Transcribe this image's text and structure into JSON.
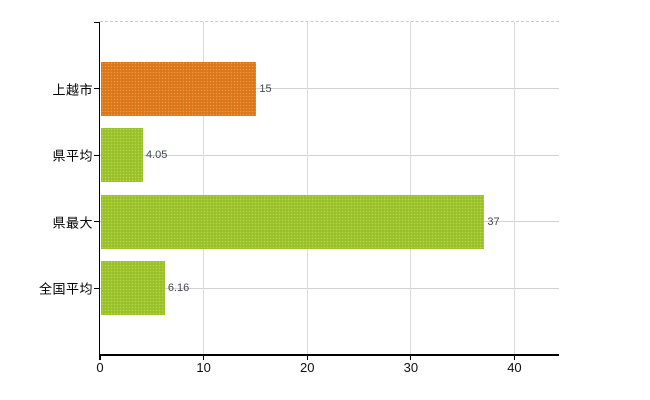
{
  "chart_data": {
    "type": "bar",
    "orientation": "horizontal",
    "title": "",
    "xlabel": "",
    "ylabel": "",
    "categories": [
      "上越市",
      "県平均",
      "県最大",
      "全国平均"
    ],
    "values": [
      15,
      4.05,
      37,
      6.16
    ],
    "value_labels": [
      "15",
      "4.05",
      "37",
      "6.16"
    ],
    "bar_colors": [
      "#e07b1e",
      "#9ec62d",
      "#9ec62d",
      "#9ec62d"
    ],
    "x_ticks": [
      0,
      10,
      20,
      30,
      40
    ],
    "x_tick_labels": [
      "0",
      "10",
      "20",
      "30",
      "40"
    ],
    "xlim": [
      0,
      44.3
    ],
    "grid": true,
    "legend": "none"
  },
  "colors": {
    "background": "#ffffff",
    "axis": "#000000",
    "vertical_gridline": "#dbdbdb",
    "horizontal_gridline": "#d2d2d2",
    "top_border_dashed": "#c9c9c9",
    "value_label_text": "#3e4750",
    "tick_label_text": "#0d0d0d",
    "category_label_text": "#000000",
    "bar_orange": "#e07b1e",
    "bar_green": "#9ec62d"
  }
}
